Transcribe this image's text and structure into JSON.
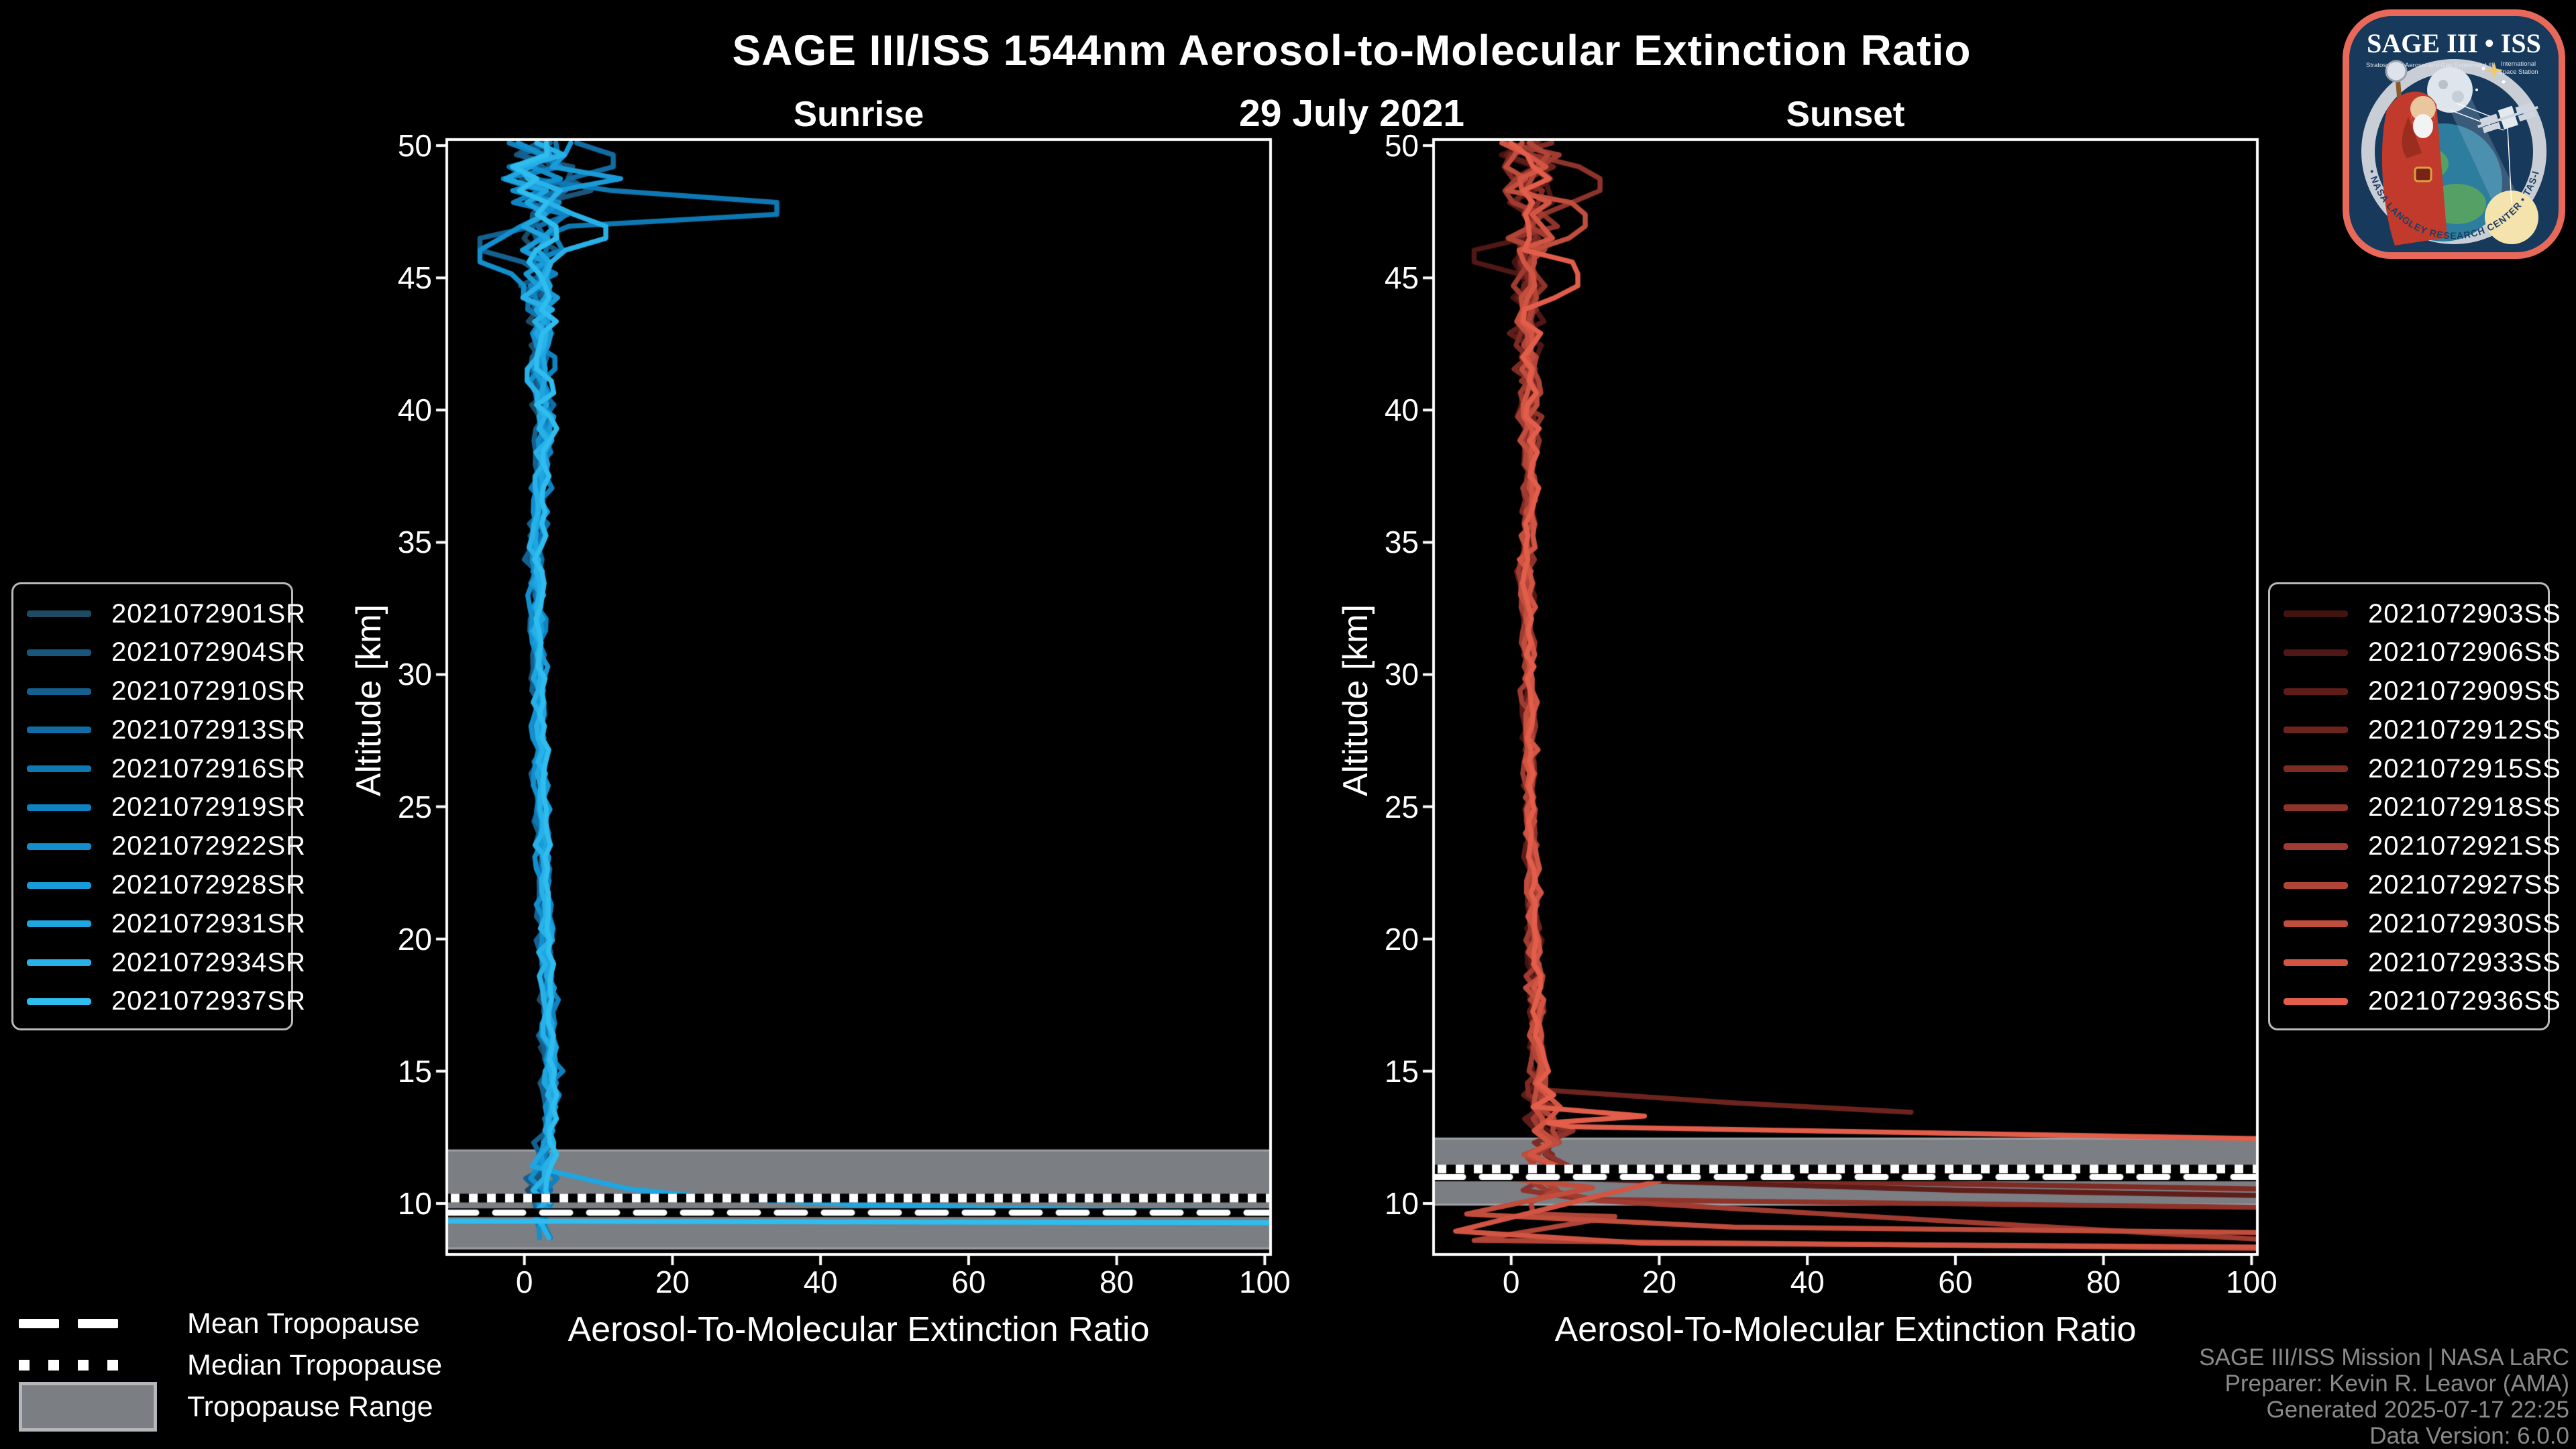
{
  "header": {
    "title": "SAGE III/ISS 1544nm Aerosol-to-Molecular Extinction Ratio",
    "date": "29 July 2021"
  },
  "tropopause_legend": {
    "mean_label": "Mean Tropopause",
    "median_label": "Median Tropopause",
    "range_label": "Tropopause Range",
    "band_color": "#7b7e83",
    "line_color": "#ffffff"
  },
  "credits": {
    "line1": "SAGE III/ISS Mission | NASA LaRC",
    "line2": "Preparer: Kevin R. Leavor (AMA)",
    "line3": "Generated 2025-07-17 22:25",
    "line4": "Data Version: 6.0.0"
  },
  "logo": {
    "title": "SAGE III • ISS",
    "subtitle_left": "Stratospheric Aerosol and Gas Experiment III",
    "subtitle_right1": "International",
    "subtitle_right2": "Space Station",
    "bottom_text": "BALL • NASA LANGLEY RESEARCH CENTER • TAS-I • ESA",
    "border_color": "#e8695a",
    "field_color": "#17395c"
  },
  "chart_data": [
    {
      "type": "line",
      "title": "Sunrise",
      "xlabel": "Aerosol-To-Molecular Extinction Ratio",
      "ylabel": "Altitude [km]",
      "xlim": [
        -10.3,
        100.6
      ],
      "ylim": [
        8.12,
        50.18
      ],
      "xticks": [
        0,
        20,
        40,
        60,
        80,
        100
      ],
      "yticks": [
        10,
        15,
        20,
        25,
        30,
        35,
        40,
        45,
        50
      ],
      "grid": false,
      "legend_position": "outside-left",
      "tropopause": {
        "mean_km": 9.65,
        "median_km": 10.2,
        "range_km": [
          8.3,
          12.0
        ]
      },
      "profile": {
        "alt_top": 50.1,
        "step": 0.45,
        "base": [
          [
            50.1,
            2.5
          ],
          [
            49,
            1.5
          ],
          [
            48,
            3
          ],
          [
            47,
            2
          ],
          [
            46,
            2.5
          ],
          [
            45,
            2
          ],
          [
            43,
            2.5
          ],
          [
            41,
            2
          ],
          [
            39,
            2.8
          ],
          [
            37,
            2
          ],
          [
            35,
            1.6
          ],
          [
            32,
            1.7
          ],
          [
            30,
            1.9
          ],
          [
            27,
            2.1
          ],
          [
            24,
            2.4
          ],
          [
            21,
            2.7
          ],
          [
            18,
            3.1
          ],
          [
            15,
            3.4
          ],
          [
            13.5,
            3.6
          ],
          [
            12.5,
            3.2
          ],
          [
            11.5,
            2.6
          ],
          [
            10.5,
            2.2
          ],
          [
            9.5,
            2.4
          ],
          [
            8.3,
            2.8
          ]
        ],
        "noise": [
          [
            50.1,
            5.5
          ],
          [
            48.5,
            5.0
          ],
          [
            47,
            4.0
          ],
          [
            45.5,
            3.0
          ],
          [
            44,
            2.4
          ],
          [
            42,
            2.0
          ],
          [
            40,
            1.7
          ],
          [
            37,
            1.3
          ],
          [
            33,
            1.0
          ],
          [
            28,
            0.9
          ],
          [
            22,
            0.9
          ],
          [
            17,
            1.0
          ],
          [
            14.5,
            1.2
          ],
          [
            13,
            1.5
          ],
          [
            12,
            1.8
          ],
          [
            11,
            1.8
          ],
          [
            10,
            1.6
          ],
          [
            8.3,
            1.5
          ]
        ]
      },
      "series": [
        {
          "name": "2021072901SR",
          "color": "#1f4a63",
          "seed": 11,
          "amp": 1.0,
          "bias": -0.3,
          "end_alt": 9.6
        },
        {
          "name": "2021072904SR",
          "color": "#1a567b",
          "seed": 22,
          "amp": 1.1,
          "bias": 0.2,
          "end_alt": 9.4,
          "spikes": [
            [
              48.3,
              9
            ]
          ]
        },
        {
          "name": "2021072910SR",
          "color": "#146190",
          "seed": 33,
          "amp": 1.0,
          "bias": -0.6,
          "end_alt": 9.0,
          "spikes": [
            [
              46.3,
              -6
            ]
          ]
        },
        {
          "name": "2021072913SR",
          "color": "#106ca2",
          "seed": 44,
          "amp": 0.9,
          "bias": 0.4,
          "end_alt": 9.5,
          "spikes": [
            [
              49.4,
              12
            ]
          ]
        },
        {
          "name": "2021072916SR",
          "color": "#0e78b2",
          "seed": 55,
          "amp": 1.0,
          "bias": 0.0,
          "end_alt": 9.2,
          "spikes": [
            [
              47.6,
              32
            ],
            [
              47.0,
              6
            ]
          ]
        },
        {
          "name": "2021072919SR",
          "color": "#0f83c1",
          "seed": 66,
          "amp": 1.1,
          "bias": 0.6,
          "end_alt": 8.3
        },
        {
          "name": "2021072922SR",
          "color": "#128fce",
          "seed": 77,
          "amp": 1.0,
          "bias": -0.4,
          "end_alt": 8.4,
          "spikes": [
            [
              45.9,
              -6
            ]
          ]
        },
        {
          "name": "2021072928SR",
          "color": "#189bd8",
          "seed": 88,
          "amp": 1.2,
          "bias": 0.3,
          "end_alt": 9.3,
          "spikes": [
            [
              48.8,
              13
            ]
          ]
        },
        {
          "name": "2021072931SR",
          "color": "#1fa6e0",
          "seed": 99,
          "amp": 1.0,
          "bias": 0.1,
          "tail": [
            [
              7,
              11
            ],
            [
              14,
              10.55
            ],
            [
              26,
              10.2
            ],
            [
              45,
              9.95
            ],
            [
              70,
              9.8
            ],
            [
              100.6,
              9.7
            ]
          ]
        },
        {
          "name": "2021072934SR",
          "color": "#27b1e8",
          "seed": 110,
          "amp": 1.1,
          "bias": -0.2,
          "end_alt": 8.25,
          "spikes": [
            [
              46.8,
              11
            ]
          ]
        },
        {
          "name": "2021072937SR",
          "color": "#2fbcee",
          "seed": 121,
          "amp": 1.0,
          "bias": 0.5,
          "end_alt": 9.9,
          "extra": [
            [
              -10.4,
              9.33
            ],
            [
              100.6,
              9.27
            ]
          ]
        }
      ]
    },
    {
      "type": "line",
      "title": "Sunset",
      "xlabel": "Aerosol-To-Molecular Extinction Ratio",
      "ylabel": "Altitude [km]",
      "xlim": [
        -10.3,
        100.6
      ],
      "ylim": [
        8.12,
        50.18
      ],
      "xticks": [
        0,
        20,
        40,
        60,
        80,
        100
      ],
      "yticks": [
        10,
        15,
        20,
        25,
        30,
        35,
        40,
        45,
        50
      ],
      "grid": false,
      "legend_position": "outside-right",
      "tropopause": {
        "mean_km": 11.0,
        "median_km": 11.3,
        "range_km": [
          9.95,
          12.45
        ]
      },
      "profile": {
        "alt_top": 50.1,
        "step": 0.45,
        "base": [
          [
            50.1,
            2.2
          ],
          [
            49,
            3
          ],
          [
            48,
            2
          ],
          [
            47,
            2.8
          ],
          [
            46,
            2
          ],
          [
            45,
            2.5
          ],
          [
            43,
            2
          ],
          [
            41,
            2.5
          ],
          [
            39,
            2.2
          ],
          [
            37,
            2.6
          ],
          [
            35,
            2
          ],
          [
            32,
            2.2
          ],
          [
            30,
            2.4
          ],
          [
            27,
            2.5
          ],
          [
            24,
            2.7
          ],
          [
            21,
            2.9
          ],
          [
            18,
            3.2
          ],
          [
            15,
            3.6
          ],
          [
            14,
            4.0
          ],
          [
            13,
            4.5
          ],
          [
            12.5,
            5.5
          ],
          [
            12,
            4
          ],
          [
            11.5,
            6
          ],
          [
            11,
            3
          ],
          [
            10.5,
            5
          ],
          [
            10,
            2.5
          ],
          [
            9.5,
            4
          ],
          [
            9,
            2.5
          ],
          [
            8.3,
            3
          ]
        ],
        "noise": [
          [
            50.1,
            5.0
          ],
          [
            48.5,
            4.5
          ],
          [
            47,
            3.5
          ],
          [
            45.5,
            2.8
          ],
          [
            44,
            2.2
          ],
          [
            42,
            1.9
          ],
          [
            40,
            1.6
          ],
          [
            37,
            1.3
          ],
          [
            33,
            1.1
          ],
          [
            28,
            1.0
          ],
          [
            22,
            1.0
          ],
          [
            17,
            1.3
          ],
          [
            14.5,
            2.0
          ],
          [
            13,
            3.0
          ],
          [
            12,
            3.8
          ],
          [
            11,
            4.0
          ],
          [
            10,
            4.2
          ],
          [
            9,
            4.0
          ],
          [
            8.3,
            3.8
          ]
        ]
      },
      "series": [
        {
          "name": "2021072903SS",
          "color": "#411311",
          "seed": 131,
          "amp": 0.9,
          "bias": -0.2,
          "end_alt": 12.4
        },
        {
          "name": "2021072906SS",
          "color": "#4f1715",
          "seed": 142,
          "amp": 1.0,
          "bias": 0.3,
          "end_alt": 12.0,
          "spikes": [
            [
              45.8,
              -5
            ]
          ]
        },
        {
          "name": "2021072909SS",
          "color": "#5e1d19",
          "seed": 153,
          "amp": 1.0,
          "bias": -0.4,
          "tail": [
            [
              7,
              10.95
            ],
            [
              60,
              10.5
            ],
            [
              100.6,
              10.3
            ]
          ]
        },
        {
          "name": "2021072912SS",
          "color": "#6e241e",
          "seed": 164,
          "amp": 1.0,
          "bias": 0.2,
          "tail": [
            [
              4,
              14.3
            ],
            [
              30,
              13.8
            ],
            [
              54,
              13.45
            ]
          ]
        },
        {
          "name": "2021072915SS",
          "color": "#7e2b24",
          "seed": 175,
          "amp": 1.1,
          "bias": 0.0,
          "tail": [
            [
              8,
              11.15
            ],
            [
              45,
              10.8
            ],
            [
              100.6,
              10.55
            ]
          ]
        },
        {
          "name": "2021072918SS",
          "color": "#8e332a",
          "seed": 186,
          "amp": 1.0,
          "bias": 0.4,
          "spikes": [
            [
              48.6,
              12
            ]
          ],
          "tail": [
            [
              10,
              10.15
            ],
            [
              100.6,
              9.85
            ]
          ]
        },
        {
          "name": "2021072921SS",
          "color": "#9f3b30",
          "seed": 197,
          "amp": 1.1,
          "bias": -0.3,
          "tail": [
            [
              12,
              10.1
            ],
            [
              100.6,
              8.65
            ]
          ]
        },
        {
          "name": "2021072927SS",
          "color": "#b04436",
          "seed": 208,
          "amp": 1.0,
          "bias": 0.1,
          "tail": [
            [
              14,
              9.5
            ],
            [
              -5,
              8.6
            ],
            [
              100.6,
              8.3
            ]
          ]
        },
        {
          "name": "2021072930SS",
          "color": "#c14d3d",
          "seed": 219,
          "amp": 1.1,
          "bias": -0.1,
          "spikes": [
            [
              47.2,
              10
            ]
          ],
          "tail": [
            [
              11,
              10.6
            ],
            [
              -6,
              9.6
            ],
            [
              30,
              9.1
            ],
            [
              100.6,
              8.9
            ]
          ]
        },
        {
          "name": "2021072933SS",
          "color": "#d25543",
          "seed": 230,
          "amp": 1.2,
          "bias": 0.3,
          "tail": [
            [
              16,
              11.2
            ],
            [
              20,
              10.85
            ],
            [
              -7.5,
              8.95
            ],
            [
              17.5,
              8.5
            ],
            [
              100.6,
              8.35
            ]
          ]
        },
        {
          "name": "2021072936SS",
          "color": "#e25d4a",
          "seed": 241,
          "amp": 1.0,
          "bias": 0.2,
          "spikes": [
            [
              44.9,
              9
            ]
          ],
          "tail": [
            [
              18,
              13.3
            ],
            [
              5,
              13.05
            ],
            [
              8,
              12.9
            ],
            [
              100.6,
              12.45
            ]
          ]
        }
      ]
    }
  ]
}
